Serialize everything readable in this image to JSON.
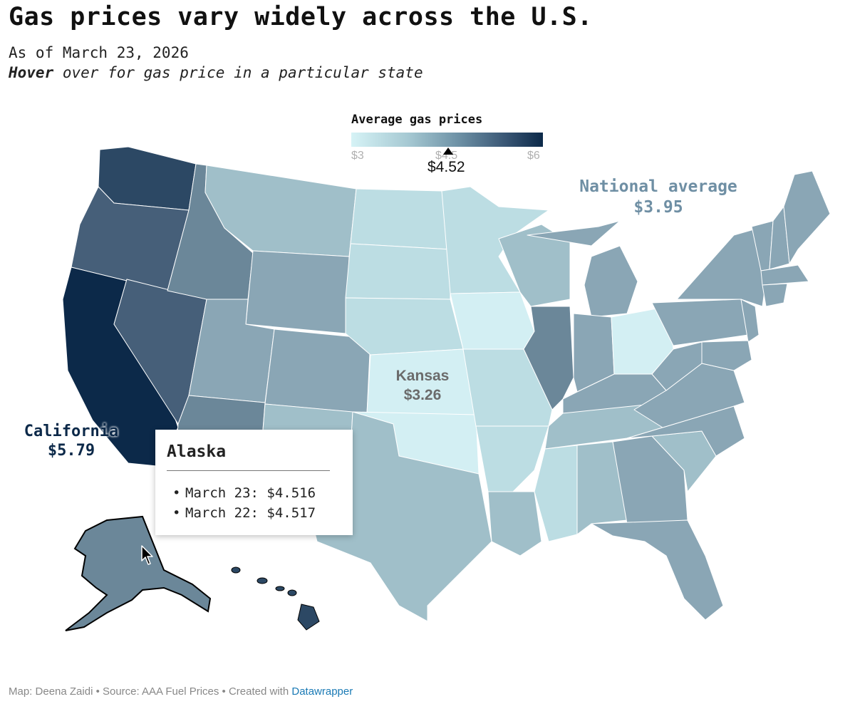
{
  "title": "Gas prices vary widely across the U.S.",
  "subtitle": "As of March 23, 2026",
  "hover_instruction": {
    "bold": "Hover",
    "rest": " over for gas price in a particular state"
  },
  "legend": {
    "title": "Average gas prices",
    "ticks": [
      "$3",
      "$4.5",
      "$6"
    ],
    "marker_value": "$4.52",
    "range": [
      3,
      6
    ]
  },
  "annotations": {
    "national_label": "National average",
    "national_value": "$3.95",
    "kansas_label": "Kansas",
    "kansas_value": "$3.26",
    "california_label": "California",
    "california_value": "$5.79"
  },
  "tooltip": {
    "state": "Alaska",
    "rows": [
      "March 23: $4.516",
      "March 22: $4.517"
    ]
  },
  "footer": {
    "text": "Map: Deena Zaidi • Source: AAA Fuel Prices • Created with ",
    "link": "Datawrapper"
  },
  "colors": {
    "ca": "#0c2949",
    "wa": "#2c4864",
    "or": "#465f79",
    "nv": "#465f79",
    "hi": "#2c4864",
    "ak": "#6b8799",
    "az": "#6b8799",
    "mid_blue": "#8aa6b5",
    "light_blue": "#a0bfc9",
    "pale": "#bcdde3",
    "palest": "#d3eff3"
  },
  "icons": {
    "cursor": "arrow-cursor-icon",
    "marker": "triangle-marker-icon"
  }
}
